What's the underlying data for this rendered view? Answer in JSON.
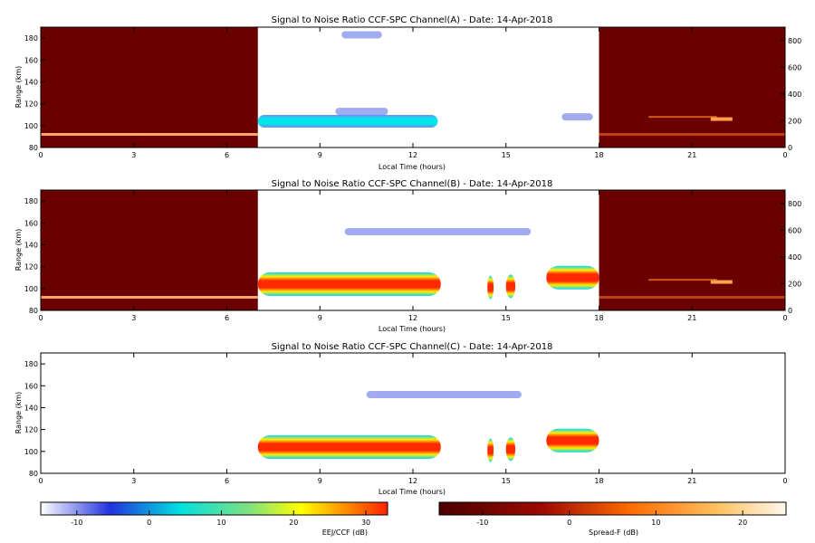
{
  "chart_data": [
    {
      "type": "heatmap",
      "title": "Signal to Noise Ratio CCF-SPC Channel(A) - Date: 14-Apr-2018",
      "xlabel": "Local Time (hours)",
      "ylabel": "Range (km)",
      "xlim": [
        0,
        24
      ],
      "ylim": [
        80,
        190
      ],
      "xticks": [
        "0",
        "3",
        "6",
        "9",
        "12",
        "15",
        "18",
        "21",
        "0"
      ],
      "yticks": [
        "80",
        "100",
        "120",
        "140",
        "160",
        "180"
      ],
      "y2lim": [
        0,
        900
      ],
      "y2ticks": [
        "0",
        "200",
        "400",
        "600",
        "800"
      ],
      "night_window_hours": [
        [
          0,
          7
        ],
        [
          18,
          24
        ]
      ],
      "ejet_features": [
        {
          "t0": 7.0,
          "t1": 12.8,
          "range_km": 104,
          "snr_db": -3
        },
        {
          "t0": 9.5,
          "t1": 11.2,
          "range_km": 113,
          "snr_db": -10
        },
        {
          "t0": 9.7,
          "t1": 11.0,
          "range_km": 183,
          "snr_db": -8
        },
        {
          "t0": 16.8,
          "t1": 17.8,
          "range_km": 108,
          "snr_db": -9
        }
      ]
    },
    {
      "type": "heatmap",
      "title": "Signal to Noise Ratio CCF-SPC Channel(B) - Date: 14-Apr-2018",
      "xlabel": "Local Time (hours)",
      "ylabel": "Range (km)",
      "xlim": [
        0,
        24
      ],
      "ylim": [
        80,
        190
      ],
      "xticks": [
        "0",
        "3",
        "6",
        "9",
        "12",
        "15",
        "18",
        "21",
        "0"
      ],
      "yticks": [
        "80",
        "100",
        "120",
        "140",
        "160",
        "180"
      ],
      "y2lim": [
        0,
        900
      ],
      "y2ticks": [
        "0",
        "200",
        "400",
        "600",
        "800"
      ],
      "night_window_hours": [
        [
          0,
          7
        ],
        [
          18,
          24
        ]
      ],
      "ejet_features": [
        {
          "t0": 7.0,
          "t1": 12.9,
          "range_km": 104,
          "snr_db": 30
        },
        {
          "t0": 14.4,
          "t1": 14.6,
          "range_km": 101,
          "snr_db": 22
        },
        {
          "t0": 15.0,
          "t1": 15.3,
          "range_km": 102,
          "snr_db": 24
        },
        {
          "t0": 16.3,
          "t1": 18.0,
          "range_km": 110,
          "snr_db": 26
        },
        {
          "t0": 9.8,
          "t1": 15.8,
          "range_km": 152,
          "snr_db": -8
        }
      ]
    },
    {
      "type": "heatmap",
      "title": "Signal to Noise Ratio CCF-SPC Channel(C) - Date: 14-Apr-2018",
      "xlabel": "Local Time (hours)",
      "ylabel": "Range (km)",
      "xlim": [
        0,
        24
      ],
      "ylim": [
        80,
        190
      ],
      "xticks": [
        "0",
        "3",
        "6",
        "9",
        "12",
        "15",
        "18",
        "21",
        "0"
      ],
      "yticks": [
        "80",
        "100",
        "120",
        "140",
        "160",
        "180"
      ],
      "ejet_features": [
        {
          "t0": 7.0,
          "t1": 12.9,
          "range_km": 104,
          "snr_db": 30
        },
        {
          "t0": 14.4,
          "t1": 14.6,
          "range_km": 101,
          "snr_db": 22
        },
        {
          "t0": 15.0,
          "t1": 15.3,
          "range_km": 102,
          "snr_db": 24
        },
        {
          "t0": 16.3,
          "t1": 18.0,
          "range_km": 110,
          "snr_db": 26
        },
        {
          "t0": 10.5,
          "t1": 15.5,
          "range_km": 152,
          "snr_db": -9
        }
      ]
    }
  ],
  "colorbars": [
    {
      "label": "EEJ/CCF (dB)",
      "range": [
        -15,
        33
      ],
      "ticks": [
        "-10",
        "0",
        "10",
        "20",
        "30"
      ],
      "tick_values": [
        -10,
        0,
        10,
        20,
        30
      ],
      "colors": [
        "#ffffff",
        "#2233dd",
        "#00e0e0",
        "#ffff00",
        "#ff2200"
      ]
    },
    {
      "label": "Spread-F (dB)",
      "range": [
        -15,
        25
      ],
      "ticks": [
        "-10",
        "0",
        "10",
        "20"
      ],
      "tick_values": [
        -10,
        0,
        10,
        20
      ],
      "colors": [
        "#5a0000",
        "#c41a00",
        "#ff8a00",
        "#fff6e6"
      ]
    }
  ],
  "colors": {
    "night_background": "#6a0000",
    "ejet_hot": "#ff2200",
    "ejet_cool": "#3344dd"
  }
}
